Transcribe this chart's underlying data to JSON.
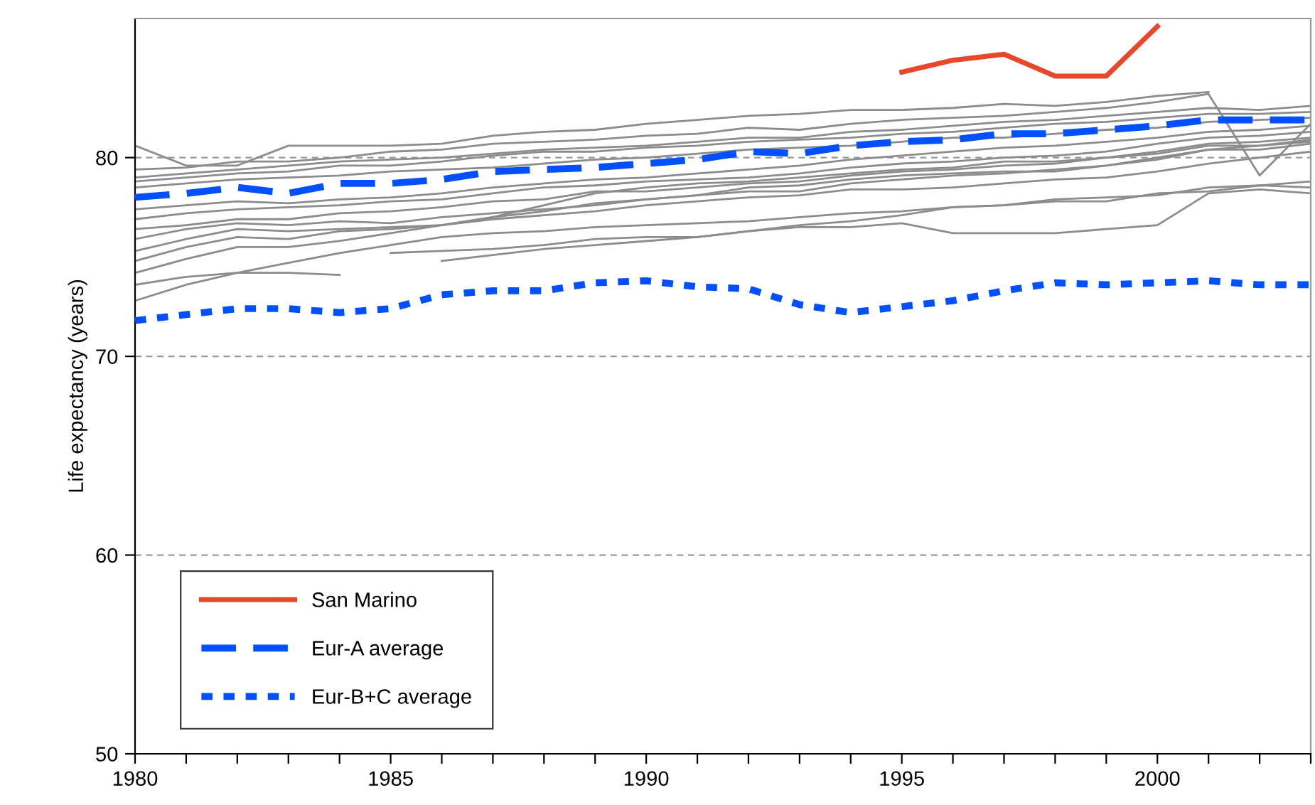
{
  "chart_data": {
    "type": "line",
    "ylabel": "Life expectancy (years)",
    "x": [
      1980,
      1981,
      1982,
      1983,
      1984,
      1985,
      1986,
      1987,
      1988,
      1989,
      1990,
      1991,
      1992,
      1993,
      1994,
      1995,
      1996,
      1997,
      1998,
      1999,
      2000,
      2001,
      2002,
      2003
    ],
    "xlim": [
      1980,
      2003
    ],
    "xticks": [
      1980,
      {
        "value": 1981,
        "label": null
      },
      {
        "value": 1982,
        "label": null
      },
      {
        "value": 1983,
        "label": null
      },
      {
        "value": 1984,
        "label": null
      },
      1985,
      {
        "value": 1986,
        "label": null
      },
      {
        "value": 1987,
        "label": null
      },
      {
        "value": 1988,
        "label": null
      },
      {
        "value": 1989,
        "label": null
      },
      1990,
      {
        "value": 1991,
        "label": null
      },
      {
        "value": 1992,
        "label": null
      },
      {
        "value": 1993,
        "label": null
      },
      {
        "value": 1994,
        "label": null
      },
      1995,
      {
        "value": 1996,
        "label": null
      },
      {
        "value": 1997,
        "label": null
      },
      {
        "value": 1998,
        "label": null
      },
      {
        "value": 1999,
        "label": null
      },
      2000,
      {
        "value": 2001,
        "label": null
      },
      {
        "value": 2002,
        "label": null
      },
      {
        "value": 2003,
        "label": null
      }
    ],
    "ylim": [
      50,
      87
    ],
    "yticks": [
      50,
      60,
      70,
      80
    ],
    "grid": "y",
    "legend": "bottom left",
    "series": [
      {
        "color": "#8c8c8c",
        "line_style": "solid",
        "values": [
          80.6,
          79.6,
          79.6,
          80.6,
          80.6,
          80.6,
          80.7,
          81.1,
          81.3,
          81.4,
          81.7,
          81.9,
          82.1,
          82.2,
          82.4,
          82.4,
          82.5,
          82.7,
          82.6,
          82.8,
          83.1,
          83.3,
          null,
          null
        ]
      },
      {
        "color": "#8c8c8c",
        "line_style": "solid",
        "values": [
          79.4,
          79.5,
          79.8,
          79.8,
          80.0,
          80.3,
          80.4,
          80.7,
          80.8,
          80.9,
          81.1,
          81.2,
          81.5,
          81.4,
          81.7,
          81.9,
          82.0,
          82.1,
          82.3,
          82.5,
          82.8,
          83.2,
          79.1,
          81.7
        ]
      },
      {
        "color": "#8c8c8c",
        "line_style": "solid",
        "values": [
          79.0,
          79.2,
          79.4,
          79.6,
          79.8,
          79.9,
          80.0,
          80.2,
          80.4,
          80.5,
          80.6,
          80.8,
          81.0,
          81.0,
          81.3,
          81.4,
          81.6,
          81.8,
          81.9,
          82.1,
          82.3,
          82.5,
          82.4,
          82.6
        ]
      },
      {
        "color": "#8c8c8c",
        "line_style": "solid",
        "values": [
          78.8,
          79.0,
          79.2,
          79.3,
          79.6,
          79.6,
          79.8,
          80.1,
          80.3,
          80.3,
          80.5,
          80.6,
          80.8,
          80.9,
          81.0,
          81.2,
          81.3,
          81.5,
          81.7,
          81.8,
          82.0,
          82.2,
          82.2,
          82.3
        ]
      },
      {
        "color": "#8c8c8c",
        "line_style": "solid",
        "values": [
          78.5,
          78.7,
          78.9,
          79.0,
          79.1,
          79.3,
          79.4,
          79.5,
          79.7,
          79.9,
          80.0,
          80.2,
          80.4,
          80.5,
          80.6,
          80.8,
          81.0,
          81.0,
          81.2,
          81.4,
          81.5,
          81.8,
          81.9,
          82.0
        ]
      },
      {
        "color": "#8c8c8c",
        "line_style": "solid",
        "values": [
          77.4,
          77.6,
          77.8,
          77.7,
          77.9,
          78.0,
          78.2,
          78.5,
          78.7,
          78.9,
          79.0,
          79.2,
          79.4,
          79.6,
          79.9,
          80.1,
          80.3,
          80.5,
          80.6,
          80.8,
          81.0,
          81.3,
          81.4,
          81.6
        ]
      },
      {
        "color": "#8c8c8c",
        "line_style": "solid",
        "values": [
          76.9,
          77.2,
          77.4,
          77.5,
          77.6,
          77.8,
          77.9,
          78.2,
          78.5,
          78.6,
          78.8,
          78.9,
          79.0,
          79.2,
          79.5,
          79.7,
          79.8,
          80.0,
          80.1,
          80.3,
          80.7,
          81.0,
          81.1,
          81.3
        ]
      },
      {
        "color": "#8c8c8c",
        "line_style": "solid",
        "values": [
          76.4,
          76.6,
          76.9,
          76.9,
          77.2,
          77.3,
          77.5,
          77.8,
          77.9,
          78.3,
          78.3,
          78.5,
          78.7,
          78.8,
          79.1,
          79.3,
          79.4,
          79.6,
          79.7,
          80.0,
          80.3,
          80.7,
          80.8,
          81.0
        ]
      },
      {
        "color": "#8c8c8c",
        "line_style": "solid",
        "values": [
          75.9,
          76.4,
          76.7,
          76.6,
          76.8,
          76.7,
          77.0,
          77.2,
          77.4,
          77.6,
          77.9,
          78.1,
          78.3,
          78.3,
          78.7,
          78.9,
          79.1,
          79.2,
          79.4,
          79.6,
          79.9,
          80.4,
          80.6,
          80.8
        ]
      },
      {
        "color": "#8c8c8c",
        "line_style": "solid",
        "values": [
          75.3,
          75.9,
          76.4,
          76.3,
          76.4,
          76.5,
          76.6,
          76.9,
          77.1,
          77.3,
          77.6,
          77.8,
          78.0,
          78.1,
          78.4,
          78.4,
          78.5,
          78.7,
          78.9,
          79.0,
          79.3,
          79.7,
          80.0,
          80.3
        ]
      },
      {
        "color": "#8c8c8c",
        "line_style": "solid",
        "values": [
          74.8,
          75.5,
          76.0,
          75.9,
          76.3,
          76.4,
          76.6,
          77.0,
          77.3,
          77.7,
          77.9,
          78.1,
          78.5,
          78.6,
          78.9,
          79.1,
          79.2,
          79.3,
          79.3,
          79.6,
          80.0,
          80.4,
          80.4,
          80.7
        ]
      },
      {
        "color": "#8c8c8c",
        "line_style": "solid",
        "values": [
          74.2,
          74.9,
          75.5,
          75.5,
          75.8,
          76.2,
          76.6,
          77.0,
          77.6,
          78.2,
          78.5,
          78.7,
          78.8,
          79.0,
          79.2,
          79.4,
          79.5,
          79.8,
          79.8,
          80.0,
          80.2,
          80.6,
          80.6,
          80.9
        ]
      },
      {
        "color": "#8c8c8c",
        "line_style": "solid",
        "values": [
          73.6,
          74.0,
          74.2,
          74.2,
          74.1,
          null,
          null,
          null,
          null,
          null,
          null,
          null,
          null,
          null,
          null,
          null,
          null,
          null,
          null,
          null,
          null,
          null,
          null,
          null
        ]
      },
      {
        "color": "#8c8c8c",
        "line_style": "solid",
        "values": [
          72.8,
          73.6,
          74.2,
          74.7,
          75.2,
          75.6,
          76.0,
          76.2,
          76.3,
          76.5,
          76.6,
          76.7,
          76.8,
          77.0,
          77.2,
          77.3,
          77.5,
          77.6,
          77.8,
          77.8,
          78.2,
          78.3,
          78.6,
          78.8
        ]
      },
      {
        "color": "#8c8c8c",
        "line_style": "solid",
        "values": [
          null,
          null,
          null,
          null,
          null,
          75.2,
          75.3,
          75.4,
          75.6,
          75.9,
          76.0,
          76.0,
          76.3,
          76.5,
          76.5,
          76.7,
          76.2,
          76.2,
          76.2,
          76.4,
          76.6,
          78.2,
          78.4,
          78.2
        ]
      },
      {
        "color": "#8c8c8c",
        "line_style": "solid",
        "values": [
          null,
          null,
          null,
          null,
          null,
          null,
          74.8,
          75.1,
          75.4,
          75.6,
          75.8,
          76.0,
          76.3,
          76.6,
          76.8,
          77.1,
          77.5,
          77.6,
          77.9,
          78.0,
          78.1,
          78.5,
          78.6,
          78.5
        ]
      },
      {
        "name": "San Marino",
        "color": "#e8472a",
        "line_style": "solid",
        "values": [
          null,
          null,
          null,
          null,
          null,
          null,
          null,
          null,
          null,
          null,
          null,
          null,
          null,
          null,
          null,
          84.3,
          84.9,
          85.2,
          84.1,
          84.1,
          86.6,
          null,
          null,
          null
        ]
      },
      {
        "name": "Eur-A average",
        "color": "#0050ff",
        "line_style": "dashed",
        "values": [
          78.0,
          78.2,
          78.5,
          78.2,
          78.7,
          78.7,
          78.9,
          79.3,
          79.4,
          79.5,
          79.7,
          79.9,
          80.3,
          80.2,
          80.6,
          80.8,
          80.9,
          81.2,
          81.2,
          81.4,
          81.6,
          81.9,
          81.9,
          81.9
        ]
      },
      {
        "name": "Eur-B+C average",
        "color": "#0050ff",
        "line_style": "dotted",
        "values": [
          71.8,
          72.1,
          72.4,
          72.4,
          72.2,
          72.4,
          73.1,
          73.3,
          73.3,
          73.7,
          73.8,
          73.5,
          73.4,
          72.6,
          72.2,
          72.5,
          72.8,
          73.3,
          73.7,
          73.6,
          73.7,
          73.8,
          73.6,
          73.6
        ]
      }
    ]
  }
}
